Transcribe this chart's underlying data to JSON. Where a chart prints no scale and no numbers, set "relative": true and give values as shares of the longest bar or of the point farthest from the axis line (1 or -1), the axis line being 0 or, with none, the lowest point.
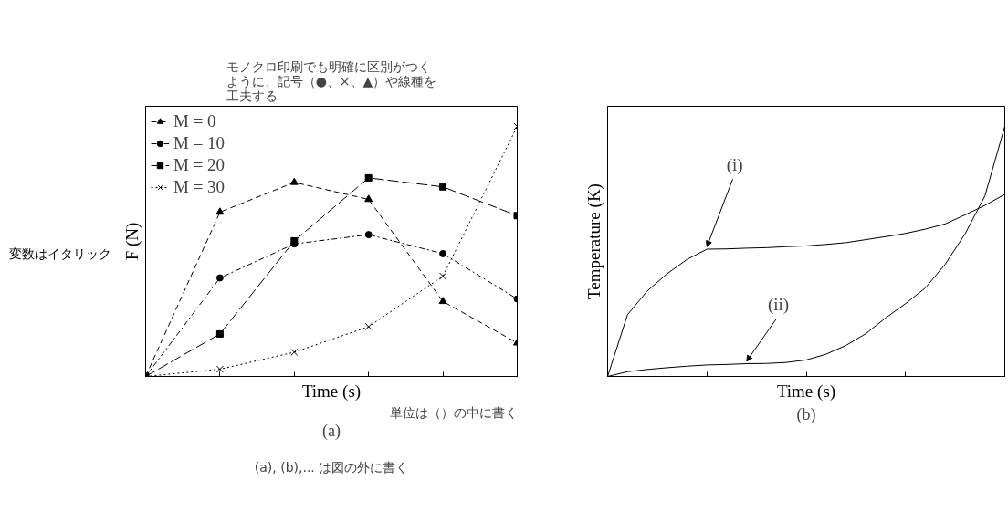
{
  "chart_data": [
    {
      "type": "line",
      "relative": true,
      "xlabel": "Time (s)",
      "ylabel": "F (N)",
      "categories": [
        null,
        null,
        null,
        null,
        null,
        null
      ],
      "legend": "top left",
      "tick_labels": false,
      "series": [
        {
          "name": "M = 0",
          "color": "#000000",
          "marker": "triangle",
          "line_style": "dashed",
          "values": [
            0,
            0.657,
            0.776,
            0.708,
            0.3,
            0.134
          ]
        },
        {
          "name": "M = 10",
          "color": "#000000",
          "marker": "circle",
          "line_style": "dashdot",
          "values": [
            0,
            0.394,
            0.53,
            0.567,
            0.491,
            0.31
          ]
        },
        {
          "name": "M = 20",
          "color": "#000000",
          "marker": "square",
          "line_style": "longdash",
          "values": [
            0,
            0.17,
            0.542,
            0.794,
            0.758,
            0.643
          ]
        },
        {
          "name": "M = 30",
          "color": "#000000",
          "marker": "cross",
          "line_style": "dotted",
          "values": [
            0,
            0.029,
            0.097,
            0.199,
            0.401,
            1
          ]
        }
      ],
      "annotations": [
        "モノクロ印刷でも明確に区別がつくように、記号（●、×、▲）や線種を工夫する",
        "変数はイタリック",
        "単位は（）の中に書く",
        "(a)",
        "(a), (b),... は図の外に書く"
      ]
    },
    {
      "type": "line",
      "relative": true,
      "xlabel": "Time (s)",
      "ylabel": "Temperature (K)",
      "categories": [
        null,
        null,
        null,
        null,
        null,
        null,
        null,
        null,
        null,
        null,
        null,
        null,
        null,
        null,
        null,
        null,
        null,
        null,
        null,
        null,
        null
      ],
      "tick_labels": false,
      "marker": "none",
      "line_style": "solid",
      "series": [
        {
          "name": "(i)",
          "color": "#000000",
          "values": [
            0,
            0.247,
            0.342,
            0.411,
            0.468,
            0.509,
            0.51,
            0.513,
            0.515,
            0.519,
            0.522,
            0.528,
            0.535,
            0.547,
            0.559,
            0.572,
            0.589,
            0.61,
            0.646,
            0.684,
            0.728
          ]
        },
        {
          "name": "(ii)",
          "color": "#000000",
          "values": [
            0,
            0.019,
            0.028,
            0.035,
            0.041,
            0.046,
            0.048,
            0.051,
            0.052,
            0.056,
            0.066,
            0.089,
            0.124,
            0.171,
            0.234,
            0.291,
            0.354,
            0.449,
            0.57,
            0.722,
            1
          ]
        }
      ],
      "annotations": [
        "(b)"
      ]
    }
  ]
}
